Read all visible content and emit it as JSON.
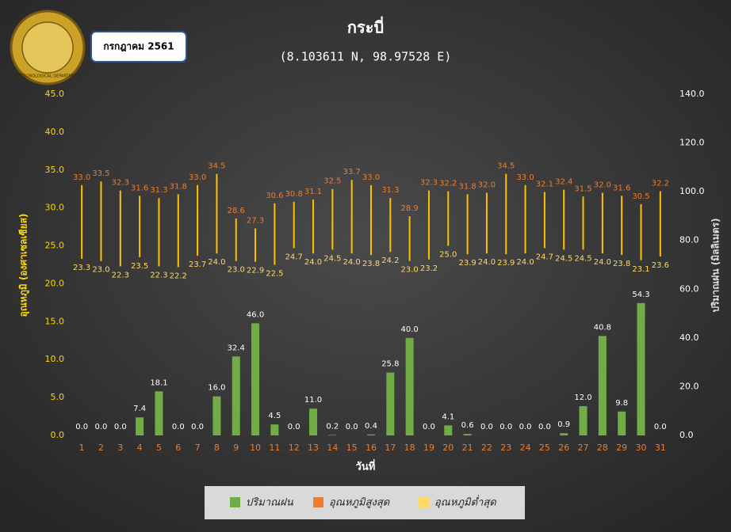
{
  "chart_data": {
    "type": "combo",
    "title": "กระบี่",
    "subtitle": "(8.103611 N, 98.97528 E)",
    "period": "กรกฎาคม 2561",
    "logo": "METEOROLOGICAL DEPARTMENT",
    "y_label": "อุณหภูมิ (องศาเซลเซียส)",
    "y2_label": "ปริมาณฝน (มิลลิเมตร)",
    "x_label": "วันที่",
    "categories": [
      "1",
      "2",
      "3",
      "4",
      "5",
      "6",
      "7",
      "8",
      "9",
      "10",
      "11",
      "12",
      "13",
      "14",
      "15",
      "16",
      "17",
      "18",
      "19",
      "20",
      "21",
      "22",
      "23",
      "24",
      "25",
      "26",
      "27",
      "28",
      "29",
      "30",
      "31"
    ],
    "ylim": [
      0,
      45
    ],
    "yticks": [
      {
        "value": 0,
        "label": "0.0"
      },
      {
        "value": 5,
        "label": "5.0"
      },
      {
        "value": 10,
        "label": "10.0"
      },
      {
        "value": 15,
        "label": "15.0"
      },
      {
        "value": 20,
        "label": "20.0"
      },
      {
        "value": 25,
        "label": "25.0"
      },
      {
        "value": 30,
        "label": "30.0"
      },
      {
        "value": 35,
        "label": "35.0"
      },
      {
        "value": 40,
        "label": "40.0"
      },
      {
        "value": 45,
        "label": "45.0"
      }
    ],
    "y2lim": [
      0,
      140
    ],
    "y2ticks": [
      {
        "value": 0,
        "label": "0.0"
      },
      {
        "value": 20,
        "label": "20.0"
      },
      {
        "value": 40,
        "label": "40.0"
      },
      {
        "value": 60,
        "label": "60.0"
      },
      {
        "value": 80,
        "label": "80.0"
      },
      {
        "value": 100,
        "label": "100.0"
      },
      {
        "value": 120,
        "label": "120.0"
      },
      {
        "value": 140,
        "label": "140.0"
      }
    ],
    "grid": false,
    "legend": "bottom",
    "series": [
      {
        "name": "ปริมาณฝน",
        "color": "#70ad47",
        "axis": "y2",
        "values": [
          0,
          0,
          0,
          7.4,
          18.1,
          0,
          0,
          16.0,
          32.4,
          46.0,
          4.5,
          0,
          11.0,
          0.2,
          0,
          0.4,
          25.8,
          40.0,
          0,
          4.1,
          0.6,
          0,
          0,
          0,
          0,
          0.9,
          12.0,
          40.8,
          9.8,
          54.3,
          0
        ],
        "value_labels": [
          "0.0",
          "0.0",
          "0.0",
          "7.4",
          "18.1",
          "0.0",
          "0.0",
          "16.0",
          "32.4",
          "46.0",
          "4.5",
          "0.0",
          "11.0",
          "0.2",
          "0.0",
          "0.4",
          "25.8",
          "40.0",
          "0.0",
          "4.1",
          "0.6",
          "0.0",
          "0.0",
          "0.0",
          "0.0",
          "0.9",
          "12.0",
          "40.8",
          "9.8",
          "54.3",
          "0.0"
        ]
      },
      {
        "name": "อุณหภูมิสูงสุด",
        "color": "#ed7d31",
        "values": [
          33.0,
          33.5,
          32.3,
          31.6,
          31.3,
          31.8,
          33.0,
          34.5,
          28.6,
          27.3,
          30.6,
          30.8,
          31.1,
          32.5,
          33.7,
          33.0,
          31.3,
          28.9,
          32.3,
          32.2,
          31.8,
          32.0,
          34.5,
          33.0,
          32.1,
          32.4,
          31.5,
          32.0,
          31.6,
          30.5,
          32.2
        ],
        "value_labels": [
          "33.0",
          "33.5",
          "32.3",
          "31.6",
          "31.3",
          "31.8",
          "33.0",
          "34.5",
          "28.6",
          "27.3",
          "30.6",
          "30.8",
          "31.1",
          "32.5",
          "33.7",
          "33.0",
          "31.3",
          "28.9",
          "32.3",
          "32.2",
          "31.8",
          "32.0",
          "34.5",
          "33.0",
          "32.1",
          "32.4",
          "31.5",
          "32.0",
          "31.6",
          "30.5",
          "32.2"
        ]
      },
      {
        "name": "อุณหภูมิต่ำสุด",
        "color": "#ffd966",
        "values": [
          23.3,
          23.0,
          22.3,
          23.5,
          22.3,
          22.2,
          23.7,
          24.0,
          23.0,
          22.9,
          22.5,
          24.7,
          24.0,
          24.5,
          24.0,
          23.8,
          24.2,
          23.0,
          23.2,
          25.0,
          23.9,
          24.0,
          23.9,
          24.0,
          24.7,
          24.5,
          24.5,
          24.0,
          23.8,
          23.1,
          23.6
        ],
        "value_labels": [
          "23.3",
          "23.0",
          "22.3",
          "23.5",
          "22.3",
          "22.2",
          "23.7",
          "24.0",
          "23.0",
          "22.9",
          "22.5",
          "24.7",
          "24.0",
          "24.5",
          "24.0",
          "23.8",
          "24.2",
          "23.0",
          "23.2",
          "25.0",
          "23.9",
          "24.0",
          "23.9",
          "24.0",
          "24.7",
          "24.5",
          "24.5",
          "24.0",
          "23.8",
          "23.1",
          "23.6"
        ]
      }
    ]
  }
}
